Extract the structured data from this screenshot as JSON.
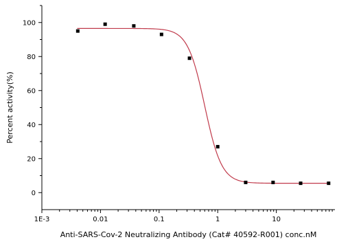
{
  "chart_data": {
    "type": "scatter",
    "title": "",
    "xlabel": "Anti-SARS-Cov-2 Neutralizing Antibody (Cat# 40592-R001) conc.nM",
    "ylabel": "Percent activity(%)",
    "x_scale": "log",
    "xlim": [
      0.001,
      100
    ],
    "ylim": [
      -10,
      110
    ],
    "x_ticks": [
      0.001,
      0.01,
      0.1,
      1,
      10
    ],
    "x_tick_labels": [
      "1E-3",
      "0.01",
      "0.1",
      "1",
      "10"
    ],
    "y_ticks": [
      0,
      20,
      40,
      60,
      80,
      100
    ],
    "y_tick_labels": [
      "0",
      "20",
      "40",
      "60",
      "80",
      "100"
    ],
    "grid": false,
    "legend": "none",
    "series": [
      {
        "kind": "points",
        "color": "#000000",
        "x": [
          0.0041,
          0.012,
          0.037,
          0.11,
          0.33,
          1.0,
          3.0,
          8.8,
          26,
          78
        ],
        "y": [
          95,
          99,
          98,
          93,
          79,
          27,
          6,
          6,
          5.5,
          5.5
        ]
      },
      {
        "kind": "fit",
        "color": "#c0394a",
        "model": "4PL",
        "bottom": 5.5,
        "top": 96.5,
        "ec50": 0.6,
        "hill": 3.0
      }
    ]
  }
}
